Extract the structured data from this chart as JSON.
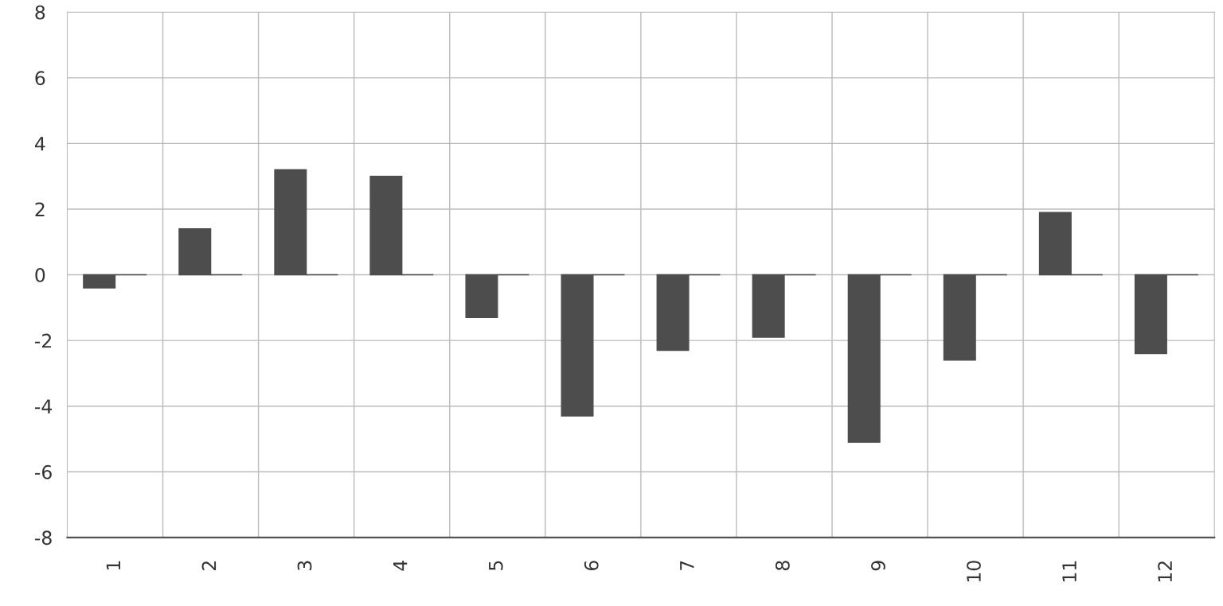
{
  "chart_data": {
    "type": "bar",
    "categories": [
      "1",
      "2",
      "3",
      "4",
      "5",
      "6",
      "7",
      "8",
      "9",
      "10",
      "11",
      "12"
    ],
    "series": [
      {
        "color": "#4d4d4d",
        "values": [
          -0.4,
          1.4,
          3.2,
          3.0,
          -1.3,
          -4.3,
          -2.3,
          -1.9,
          -5.1,
          -2.6,
          1.9,
          -2.4
        ]
      },
      {
        "color": "#4d4d4d",
        "values": [
          0,
          0,
          0,
          0,
          0,
          0,
          0,
          0,
          0,
          0,
          0,
          0
        ]
      }
    ],
    "ylim": [
      -8,
      8
    ],
    "yticks": [
      -8,
      -6,
      -4,
      -2,
      0,
      2,
      4,
      6,
      8
    ],
    "grid": true
  }
}
